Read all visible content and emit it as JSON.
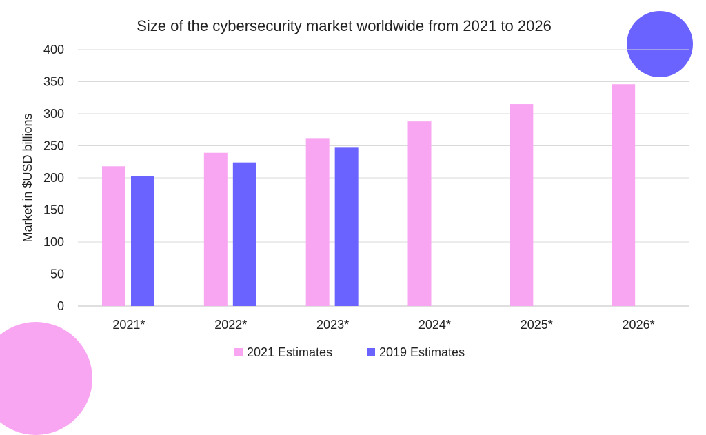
{
  "colors": {
    "series_2021": "#f8a6f2",
    "series_2019": "#6b63ff",
    "deco_purple": "#6b63ff",
    "deco_pink": "#f8a6f2"
  },
  "chart_data": {
    "type": "bar",
    "title": "Size of the cybersecurity market worldwide from 2021 to 2026",
    "xlabel": "",
    "ylabel": "Market in $USD billions",
    "categories": [
      "2021*",
      "2022*",
      "2023*",
      "2024*",
      "2025*",
      "2026*"
    ],
    "yticks": [
      "0",
      "50",
      "100",
      "150",
      "200",
      "250",
      "300",
      "350",
      "400"
    ],
    "ylim": [
      0,
      400
    ],
    "grid": true,
    "legend_position": "bottom",
    "series": [
      {
        "name": "2021 Estimates",
        "values": [
          218,
          239,
          262,
          288,
          315,
          346
        ]
      },
      {
        "name": "2019 Estimates",
        "values": [
          203,
          224,
          248,
          null,
          null,
          null
        ]
      }
    ]
  }
}
